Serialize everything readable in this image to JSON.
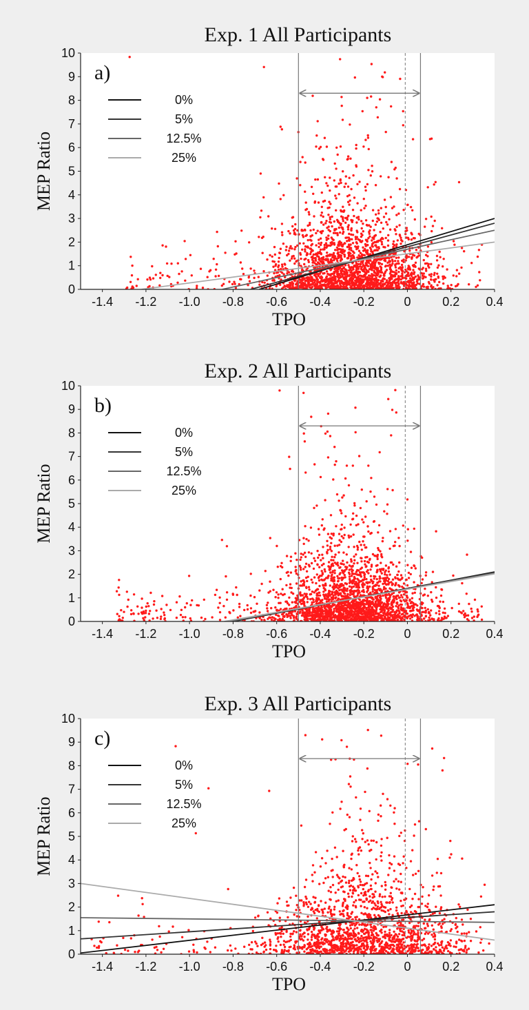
{
  "chart_data": [
    {
      "type": "scatter",
      "title": "Exp. 1 All Participants",
      "panel_label": "a)",
      "xlabel": "TPO",
      "ylabel": "MEP Ratio",
      "xlim": [
        -1.5,
        0.4
      ],
      "ylim": [
        0,
        10
      ],
      "xticks": [
        -1.4,
        -1.2,
        -1.0,
        -0.8,
        -0.6,
        -0.4,
        -0.2,
        0,
        0.2,
        0.4
      ],
      "xtick_labels": [
        "-1.4",
        "-1.2",
        "-1.0",
        "-0.8",
        "-0.6",
        "-0.4",
        "-0.2",
        "0",
        "0.2",
        "0.4"
      ],
      "yticks": [
        0,
        1,
        2,
        3,
        4,
        5,
        6,
        7,
        8,
        9,
        10
      ],
      "ytick_labels": [
        "0",
        "1",
        "2",
        "3",
        "4",
        "5",
        "6",
        "7",
        "8",
        "9",
        "10"
      ],
      "grid": false,
      "legend_position": "top-left",
      "point_color": "#ff1a1a",
      "reference_lines": {
        "x_solid": [
          -0.5,
          0.06
        ],
        "x_dashed": [
          -0.01
        ],
        "arrow_y": 8.3,
        "color": "#777777"
      },
      "series": [
        {
          "name": "0%",
          "color": "#111111",
          "points": [
            [
              -0.68,
              0
            ],
            [
              0.4,
              3.0
            ]
          ]
        },
        {
          "name": "5%",
          "color": "#333333",
          "points": [
            [
              -0.72,
              0
            ],
            [
              0.4,
              2.8
            ]
          ]
        },
        {
          "name": "12.5%",
          "color": "#666666",
          "points": [
            [
              -0.85,
              0
            ],
            [
              0.4,
              2.5
            ]
          ]
        },
        {
          "name": "25%",
          "color": "#aaaaaa",
          "points": [
            [
              -1.22,
              0
            ],
            [
              0.4,
              2.0
            ]
          ]
        }
      ],
      "scatter_note": {
        "count": 2200,
        "center_x": -0.25,
        "spread_x": 0.22,
        "x_range": [
          -1.3,
          0.35
        ],
        "median_y": 0.9
      }
    },
    {
      "type": "scatter",
      "title": "Exp. 2 All Participants",
      "panel_label": "b)",
      "xlabel": "TPO",
      "ylabel": "MEP Ratio",
      "xlim": [
        -1.5,
        0.4
      ],
      "ylim": [
        0,
        10
      ],
      "xticks": [
        -1.4,
        -1.2,
        -1.0,
        -0.8,
        -0.6,
        -0.4,
        -0.2,
        0,
        0.2,
        0.4
      ],
      "xtick_labels": [
        "-1.4",
        "-1.2",
        "-1.0",
        "-0.8",
        "-0.6",
        "-0.4",
        "-0.2",
        "0",
        "0.2",
        "0.4"
      ],
      "yticks": [
        0,
        1,
        2,
        3,
        4,
        5,
        6,
        7,
        8,
        9,
        10
      ],
      "ytick_labels": [
        "0",
        "1",
        "2",
        "3",
        "4",
        "5",
        "6",
        "7",
        "8",
        "9",
        "10"
      ],
      "grid": false,
      "legend_position": "top-left",
      "point_color": "#ff1a1a",
      "reference_lines": {
        "x_solid": [
          -0.5,
          0.06
        ],
        "x_dashed": [
          -0.01
        ],
        "arrow_y": 8.3,
        "color": "#777777"
      },
      "series": [
        {
          "name": "0%",
          "color": "#111111",
          "points": [
            [
              -0.8,
              0
            ],
            [
              0.4,
              2.1
            ]
          ]
        },
        {
          "name": "5%",
          "color": "#333333",
          "points": [
            [
              -0.81,
              0
            ],
            [
              0.4,
              2.08
            ]
          ]
        },
        {
          "name": "12.5%",
          "color": "#666666",
          "points": [
            [
              -0.82,
              0
            ],
            [
              0.4,
              2.05
            ]
          ]
        },
        {
          "name": "25%",
          "color": "#aaaaaa",
          "points": [
            [
              -0.84,
              0
            ],
            [
              0.4,
              2.02
            ]
          ]
        }
      ],
      "scatter_note": {
        "count": 2400,
        "center_x": -0.25,
        "spread_x": 0.2,
        "x_range": [
          -1.35,
          0.35
        ],
        "median_y": 0.75
      }
    },
    {
      "type": "scatter",
      "title": "Exp. 3 All Participants",
      "panel_label": "c)",
      "xlabel": "TPO",
      "ylabel": "MEP Ratio",
      "xlim": [
        -1.5,
        0.4
      ],
      "ylim": [
        0,
        10
      ],
      "xticks": [
        -1.4,
        -1.2,
        -1.0,
        -0.8,
        -0.6,
        -0.4,
        -0.2,
        0,
        0.2,
        0.4
      ],
      "xtick_labels": [
        "-1.4",
        "-1.2",
        "-1.0",
        "-0.8",
        "-0.6",
        "-0.4",
        "-0.2",
        "0",
        "0.2",
        "0.4"
      ],
      "yticks": [
        0,
        1,
        2,
        3,
        4,
        5,
        6,
        7,
        8,
        9,
        10
      ],
      "ytick_labels": [
        "0",
        "1",
        "2",
        "3",
        "4",
        "5",
        "6",
        "7",
        "8",
        "9",
        "10"
      ],
      "grid": false,
      "legend_position": "top-left",
      "point_color": "#ff1a1a",
      "reference_lines": {
        "x_solid": [
          -0.5,
          0.06
        ],
        "x_dashed": [
          -0.01
        ],
        "arrow_y": 8.3,
        "color": "#777777"
      },
      "series": [
        {
          "name": "0%",
          "color": "#111111",
          "points": [
            [
              -1.5,
              0.05
            ],
            [
              0.4,
              2.1
            ]
          ]
        },
        {
          "name": "5%",
          "color": "#333333",
          "points": [
            [
              -1.5,
              0.65
            ],
            [
              0.4,
              1.8
            ]
          ]
        },
        {
          "name": "12.5%",
          "color": "#666666",
          "points": [
            [
              -1.5,
              1.55
            ],
            [
              0.4,
              1.35
            ]
          ]
        },
        {
          "name": "25%",
          "color": "#aaaaaa",
          "points": [
            [
              -1.5,
              3.0
            ],
            [
              0.4,
              0.6
            ]
          ]
        }
      ],
      "scatter_note": {
        "count": 1700,
        "center_x": -0.2,
        "spread_x": 0.25,
        "x_range": [
          -1.45,
          0.38
        ],
        "median_y": 0.95
      }
    }
  ]
}
